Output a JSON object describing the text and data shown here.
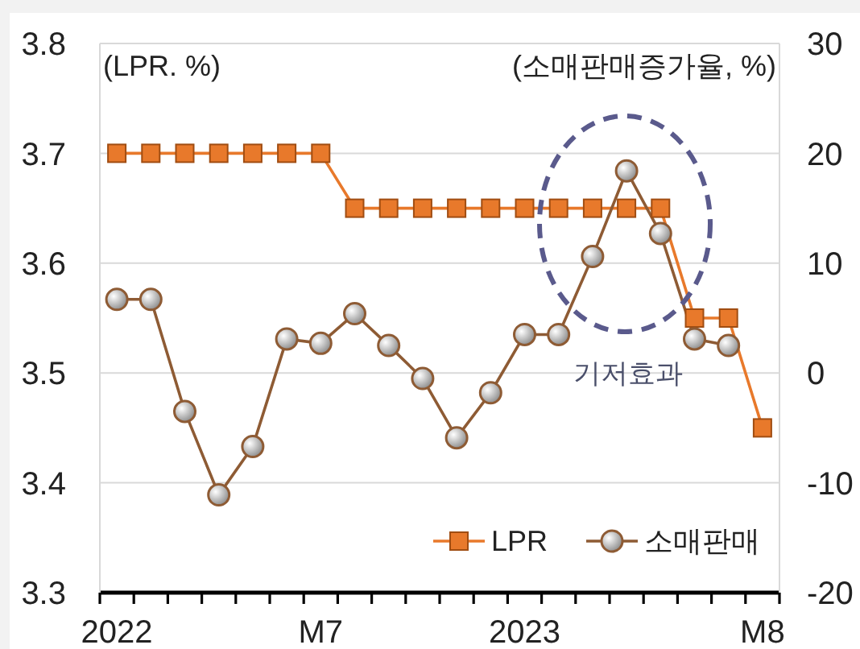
{
  "chart_data": {
    "type": "line",
    "ylabel": "(LPR. %)",
    "y2label": "(소매판매증가율, %)",
    "annotations": [
      "기저효과"
    ],
    "categories": [
      "2022",
      null,
      null,
      null,
      null,
      null,
      "M7",
      null,
      null,
      null,
      null,
      null,
      "2023",
      null,
      null,
      null,
      null,
      null,
      null,
      "M8"
    ],
    "series": [
      {
        "name": "LPR",
        "color": "#e8792b",
        "marker": "square",
        "values": [
          3.7,
          3.7,
          3.7,
          3.7,
          3.7,
          3.7,
          3.7,
          3.65,
          3.65,
          3.65,
          3.65,
          3.65,
          3.65,
          3.65,
          3.65,
          3.65,
          3.65,
          3.55,
          3.55,
          3.45
        ]
      },
      {
        "name": "소매판매",
        "color": "#8e5b34",
        "marker": "circle",
        "axis": "y2",
        "values": [
          6.7,
          6.7,
          -3.5,
          -11.1,
          -6.7,
          3.1,
          2.7,
          5.4,
          2.5,
          -0.5,
          -5.9,
          -1.8,
          3.5,
          3.5,
          10.6,
          18.4,
          12.7,
          3.1,
          2.5,
          null
        ]
      }
    ],
    "ylim": [
      3.3,
      3.8
    ],
    "yticks": [
      3.3,
      3.4,
      3.5,
      3.6,
      3.7,
      3.8
    ],
    "y2lim": [
      -20,
      30
    ],
    "y2ticks": [
      -20,
      -10,
      0,
      10,
      20,
      30
    ],
    "grid": "y",
    "legend": "bottom right"
  }
}
